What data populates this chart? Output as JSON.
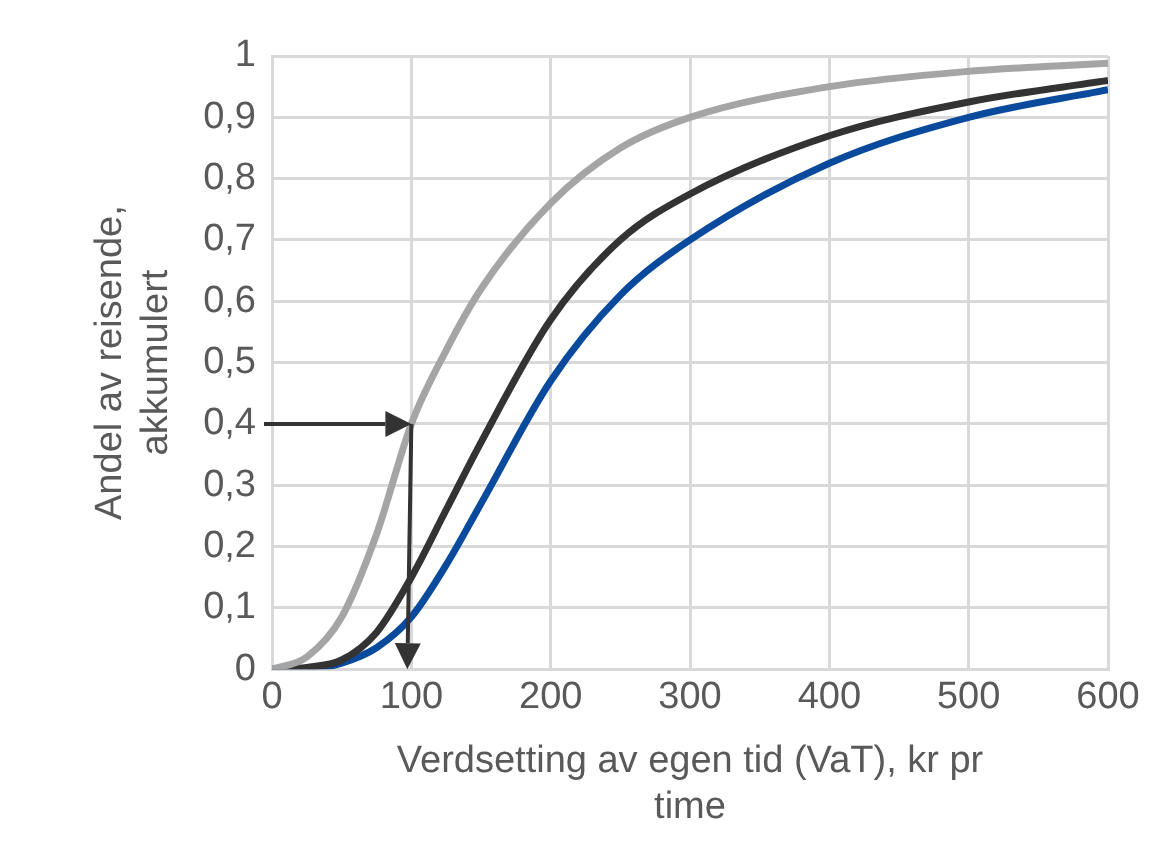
{
  "chart_data": {
    "type": "line",
    "xlabel": "Verdsetting av egen tid (VaT), kr pr time",
    "ylabel": "Andel av reisende, akkumulert",
    "x": [
      0,
      25,
      50,
      75,
      100,
      125,
      150,
      200,
      250,
      300,
      400,
      500,
      600
    ],
    "series": [
      {
        "color": "#a5a5a5",
        "values": [
          0,
          0.02,
          0.085,
          0.22,
          0.4,
          0.52,
          0.62,
          0.76,
          0.85,
          0.9,
          0.95,
          0.975,
          0.988
        ]
      },
      {
        "color": "#333333",
        "values": [
          0,
          0.003,
          0.015,
          0.06,
          0.15,
          0.26,
          0.37,
          0.57,
          0.7,
          0.775,
          0.87,
          0.925,
          0.96
        ]
      },
      {
        "color": "#0a4a9c",
        "values": [
          0,
          0,
          0.01,
          0.035,
          0.085,
          0.17,
          0.27,
          0.47,
          0.61,
          0.7,
          0.825,
          0.9,
          0.945
        ]
      }
    ],
    "xlim": [
      0,
      600
    ],
    "xticks": [
      0,
      100,
      200,
      300,
      400,
      500,
      600
    ],
    "ylim": [
      0,
      1
    ],
    "yticks": [
      0,
      {
        "value": 0.1,
        "label": "0,1"
      },
      {
        "value": 0.2,
        "label": "0,2"
      },
      {
        "value": 0.3,
        "label": "0,3"
      },
      {
        "value": 0.4,
        "label": "0,4"
      },
      {
        "value": 0.5,
        "label": "0,5"
      },
      {
        "value": 0.6,
        "label": "0,6"
      },
      {
        "value": 0.7,
        "label": "0,7"
      },
      {
        "value": 0.8,
        "label": "0,8"
      },
      {
        "value": 0.9,
        "label": "0,9"
      },
      1
    ],
    "grid": true,
    "legend": false,
    "marker": "none",
    "line_style": "solid"
  }
}
